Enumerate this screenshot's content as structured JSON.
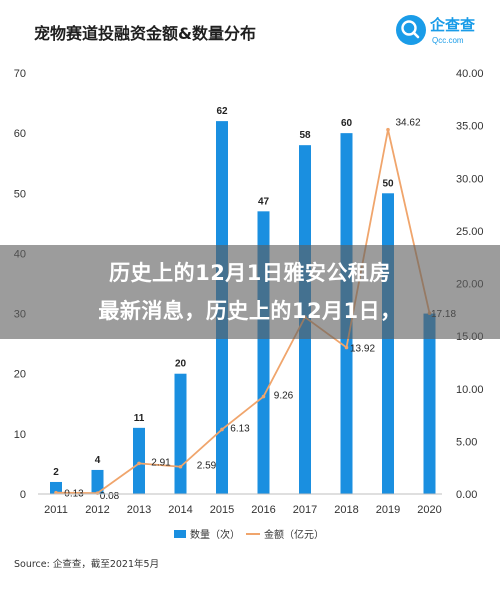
{
  "chart_data": {
    "type": "bar",
    "title": "宠物赛道投融资金额&数量分布",
    "categories": [
      "2011",
      "2012",
      "2013",
      "2014",
      "2015",
      "2016",
      "2017",
      "2018",
      "2019",
      "2020"
    ],
    "series": [
      {
        "name": "数量（次）",
        "type": "bar",
        "axis": "left",
        "values": [
          2,
          4,
          11,
          20,
          62,
          47,
          58,
          60,
          50,
          30
        ]
      },
      {
        "name": "金额（亿元）",
        "type": "line",
        "axis": "right",
        "values": [
          0.13,
          0.08,
          2.91,
          2.59,
          6.13,
          9.26,
          16.8,
          13.92,
          34.62,
          17.18
        ]
      }
    ],
    "bar_labels": [
      "2",
      "4",
      "11",
      "20",
      "62",
      "47",
      "58",
      "60",
      "50",
      ""
    ],
    "line_labels": [
      "0.13",
      "0.08",
      "2.91",
      "2.59",
      "6.13",
      "9.26",
      "",
      "13.92",
      "34.62",
      "17.18"
    ],
    "left_ylim": [
      0,
      70
    ],
    "left_ticks": [
      "0",
      "10",
      "20",
      "30",
      "40",
      "50",
      "60",
      "70"
    ],
    "right_ylim": [
      0,
      40
    ],
    "right_ticks": [
      "0.00",
      "5.00",
      "10.00",
      "15.00",
      "20.00",
      "25.00",
      "30.00",
      "35.00",
      "40.00"
    ],
    "grid": false,
    "legend_position": "bottom",
    "colors": {
      "bar": "#1a8fe0",
      "line": "#f0a56c"
    }
  },
  "source": "Source: 企查查，截至2021年5月",
  "logo": {
    "name": "企查查",
    "sub": "Qcc.com"
  },
  "overlay": {
    "line1": "历史上的12月1日雅安公租房",
    "line2": "最新消息，历史上的12月1日，"
  }
}
